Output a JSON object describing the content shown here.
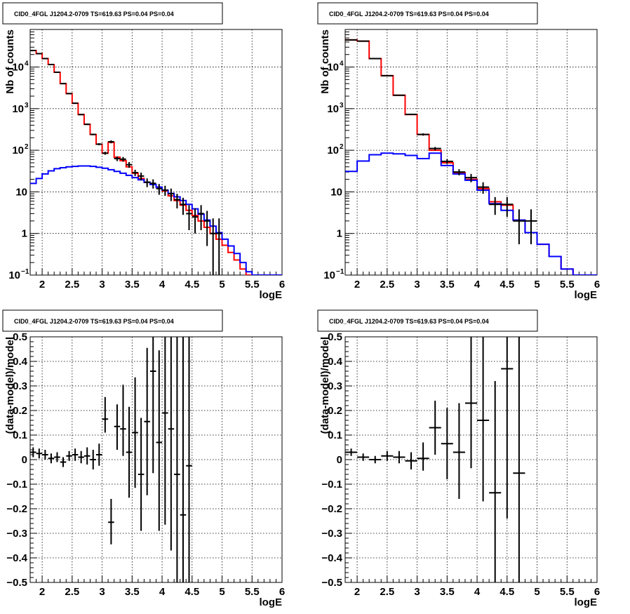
{
  "chart_data": [
    {
      "id": "tl",
      "type": "line",
      "title": "CID0_4FGL J1204.2-0709 TS=619.63 PS=0.04 PS=0.04",
      "xlabel": "logE",
      "ylabel": "Nb of counts",
      "xlim": [
        1.8,
        6.0
      ],
      "ylim": [
        0.1,
        80000
      ],
      "ylog": true,
      "grid": true,
      "xticks": [
        "2",
        "2.5",
        "3",
        "3.5",
        "4",
        "4.5",
        "5",
        "5.5",
        "6"
      ],
      "xtick_values": [
        2,
        2.5,
        3,
        3.5,
        4,
        4.5,
        5,
        5.5,
        6
      ],
      "yticks": [
        {
          "v": 0.1,
          "base": "10",
          "sup": "−1"
        },
        {
          "v": 1,
          "base": "1",
          "sup": ""
        },
        {
          "v": 10,
          "base": "10",
          "sup": ""
        },
        {
          "v": 100,
          "base": "10",
          "sup": "2"
        },
        {
          "v": 1000,
          "base": "10",
          "sup": "3"
        },
        {
          "v": 10000,
          "base": "10",
          "sup": "4"
        }
      ],
      "bin_edges": [
        1.8,
        1.9,
        2.0,
        2.1,
        2.2,
        2.3,
        2.4,
        2.5,
        2.6,
        2.7,
        2.8,
        2.9,
        3.0,
        3.1,
        3.2,
        3.3,
        3.4,
        3.5,
        3.6,
        3.7,
        3.8,
        3.9,
        4.0,
        4.1,
        4.2,
        4.3,
        4.4,
        4.5,
        4.6,
        4.7,
        4.8,
        4.9,
        5.0,
        5.1,
        5.2,
        5.3,
        5.4,
        5.5,
        5.6,
        5.7,
        5.8,
        5.9,
        6.0
      ],
      "series": [
        {
          "name": "",
          "color": "#ff0000",
          "kind": "hist",
          "values": [
            25000,
            21000,
            16000,
            11500,
            7500,
            4000,
            2300,
            1350,
            720,
            420,
            240,
            140,
            85,
            155,
            68,
            56,
            40,
            28,
            21,
            17,
            15,
            13,
            10.5,
            8,
            6.2,
            4.8,
            3.6,
            2.7,
            2.0,
            1.4,
            1.0,
            0.73,
            0.52,
            0.35,
            0.23,
            0.14,
            0.1,
            0.1,
            0.1,
            0.1,
            0.1,
            0.1
          ]
        },
        {
          "name": "",
          "color": "#0000ff",
          "kind": "hist",
          "values": [
            16,
            21,
            27,
            32,
            36,
            38,
            40,
            41,
            42,
            42,
            41,
            39,
            37,
            34,
            31,
            28,
            25,
            22,
            19.5,
            17,
            15,
            13,
            11,
            9.2,
            7.6,
            6.2,
            5.0,
            3.9,
            2.9,
            2.1,
            1.5,
            1.05,
            0.73,
            0.5,
            0.33,
            0.2,
            0.12,
            0.1,
            0.1,
            0.1,
            0.1,
            0.1
          ]
        },
        {
          "name": "",
          "color": "#000000",
          "kind": "points",
          "x": [
            1.85,
            1.95,
            2.05,
            2.15,
            2.25,
            2.35,
            2.45,
            2.55,
            2.65,
            2.75,
            2.85,
            2.95,
            3.05,
            3.15,
            3.25,
            3.35,
            3.45,
            3.55,
            3.65,
            3.75,
            3.85,
            3.95,
            4.05,
            4.15,
            4.25,
            4.35,
            4.45,
            4.55,
            4.65,
            4.75,
            4.85,
            4.95
          ],
          "y": [
            25000,
            21000,
            16000,
            11500,
            7500,
            4000,
            2300,
            1350,
            720,
            420,
            240,
            140,
            85,
            160,
            63,
            61,
            45,
            29,
            24,
            17,
            16,
            12,
            11,
            9,
            6.5,
            5,
            3,
            2.5,
            3,
            2,
            1,
            1
          ],
          "ylo": [
            24800,
            20800,
            15800,
            11300,
            7350,
            3900,
            2250,
            1320,
            700,
            405,
            230,
            132,
            78,
            147,
            55,
            53,
            38,
            24,
            19,
            13,
            12,
            8.5,
            8,
            6,
            4,
            2.8,
            1.2,
            1.0,
            1.2,
            0.5,
            0.05,
            0.05
          ],
          "yhi": [
            25200,
            21200,
            16200,
            11700,
            7650,
            4100,
            2350,
            1380,
            740,
            435,
            250,
            148,
            92,
            173,
            71,
            69,
            52,
            34,
            29,
            21,
            20,
            15.5,
            14,
            12,
            9,
            7.2,
            4.8,
            4,
            4.8,
            3.5,
            2.3,
            2.3
          ]
        }
      ]
    },
    {
      "id": "tr",
      "type": "line",
      "title": "CID0_4FGL J1204.2-0709 TS=619.63 PS=0.04 PS=0.04",
      "xlabel": "logE",
      "ylabel": "Nb of counts",
      "xlim": [
        1.8,
        6.0
      ],
      "ylim": [
        0.1,
        80000
      ],
      "ylog": true,
      "grid": true,
      "xticks": [
        "2",
        "2.5",
        "3",
        "3.5",
        "4",
        "4.5",
        "5",
        "5.5",
        "6"
      ],
      "xtick_values": [
        2,
        2.5,
        3,
        3.5,
        4,
        4.5,
        5,
        5.5,
        6
      ],
      "yticks": [
        {
          "v": 0.1,
          "base": "10",
          "sup": "−1"
        },
        {
          "v": 1,
          "base": "1",
          "sup": ""
        },
        {
          "v": 10,
          "base": "10",
          "sup": ""
        },
        {
          "v": 100,
          "base": "10",
          "sup": "2"
        },
        {
          "v": 1000,
          "base": "10",
          "sup": "3"
        },
        {
          "v": 10000,
          "base": "10",
          "sup": "4"
        }
      ],
      "bin_edges": [
        1.8,
        2.0,
        2.2,
        2.4,
        2.6,
        2.8,
        3.0,
        3.2,
        3.4,
        3.6,
        3.8,
        4.0,
        4.2,
        4.4,
        4.6,
        4.8,
        5.0,
        5.2,
        5.4,
        5.6,
        5.8,
        6.0
      ],
      "series": [
        {
          "name": "",
          "color": "#ff0000",
          "kind": "hist",
          "values": [
            45000,
            42000,
            16000,
            6200,
            2100,
            720,
            240,
            100,
            50,
            29,
            20,
            12,
            5.8,
            4.8,
            2.1,
            1.05,
            0.55,
            0.28,
            0.14,
            0.1,
            0.1
          ]
        },
        {
          "name": "",
          "color": "#0000ff",
          "kind": "hist",
          "values": [
            31,
            55,
            78,
            85,
            82,
            75,
            63,
            85,
            43,
            27,
            19,
            11,
            5.2,
            3.6,
            2.1,
            1.05,
            0.55,
            0.28,
            0.14,
            0.1,
            0.1
          ]
        },
        {
          "name": "",
          "color": "#000000",
          "kind": "points",
          "x": [
            1.9,
            2.1,
            2.3,
            2.5,
            2.7,
            2.9,
            3.1,
            3.3,
            3.5,
            3.7,
            3.9,
            4.1,
            4.3,
            4.5,
            4.7,
            4.9
          ],
          "y": [
            45000,
            42000,
            16000,
            6200,
            2100,
            730,
            240,
            110,
            54,
            30,
            22,
            13,
            5,
            5,
            2,
            2
          ],
          "ylo": [
            44600,
            41600,
            15800,
            6100,
            2050,
            700,
            225,
            100,
            47,
            25,
            17,
            9,
            2.8,
            2.5,
            0.55,
            0.55
          ],
          "yhi": [
            45400,
            42400,
            16200,
            6300,
            2150,
            760,
            255,
            120,
            61,
            35,
            27,
            17,
            7.5,
            7.5,
            3.8,
            3.8
          ]
        }
      ]
    },
    {
      "id": "bl",
      "type": "scatter",
      "title": "CID0_4FGL J1204.2-0709 TS=619.63 PS=0.04 PS=0.04",
      "xlabel": "logE",
      "ylabel": "(data-model)/model",
      "xlim": [
        1.8,
        6.0
      ],
      "ylim": [
        -0.5,
        0.5
      ],
      "ylog": false,
      "grid": true,
      "xticks": [
        "2",
        "2.5",
        "3",
        "3.5",
        "4",
        "4.5",
        "5",
        "5.5",
        "6"
      ],
      "xtick_values": [
        2,
        2.5,
        3,
        3.5,
        4,
        4.5,
        5,
        5.5,
        6
      ],
      "yticks": [
        {
          "v": -0.5,
          "base": "−0.5",
          "sup": ""
        },
        {
          "v": -0.4,
          "base": "−0.4",
          "sup": ""
        },
        {
          "v": -0.3,
          "base": "−0.3",
          "sup": ""
        },
        {
          "v": -0.2,
          "base": "−0.2",
          "sup": ""
        },
        {
          "v": -0.1,
          "base": "−0.1",
          "sup": ""
        },
        {
          "v": 0,
          "base": "0",
          "sup": ""
        },
        {
          "v": 0.1,
          "base": "0.1",
          "sup": ""
        },
        {
          "v": 0.2,
          "base": "0.2",
          "sup": ""
        },
        {
          "v": 0.3,
          "base": "0.3",
          "sup": ""
        },
        {
          "v": 0.4,
          "base": "0.4",
          "sup": ""
        },
        {
          "v": 0.5,
          "base": "0.5",
          "sup": ""
        }
      ],
      "series": [
        {
          "name": "",
          "color": "#000000",
          "kind": "points",
          "xerr": 0.05,
          "x": [
            1.85,
            1.95,
            2.05,
            2.15,
            2.25,
            2.35,
            2.45,
            2.55,
            2.65,
            2.75,
            2.85,
            2.95,
            3.05,
            3.15,
            3.25,
            3.35,
            3.45,
            3.55,
            3.65,
            3.75,
            3.85,
            3.95,
            4.05,
            4.15,
            4.25,
            4.35,
            4.45
          ],
          "y": [
            0.03,
            0.025,
            0.02,
            0.005,
            0.01,
            -0.01,
            0.015,
            0.02,
            0.01,
            0.015,
            0.0,
            0.02,
            0.165,
            -0.255,
            0.135,
            0.125,
            0.03,
            0.11,
            -0.06,
            0.155,
            0.36,
            0.07,
            0.19,
            0.125,
            -0.06,
            -0.225,
            -0.025
          ],
          "ylo": [
            0.01,
            0.005,
            0.0,
            -0.015,
            -0.01,
            -0.03,
            -0.005,
            -0.005,
            -0.015,
            -0.02,
            -0.04,
            -0.025,
            0.11,
            -0.345,
            0.04,
            0.015,
            -0.155,
            -0.115,
            -0.29,
            -0.145,
            -0.055,
            -0.29,
            -0.265,
            -0.37,
            -0.5,
            -0.5,
            -0.5
          ],
          "yhi": [
            0.05,
            0.045,
            0.04,
            0.025,
            0.03,
            0.01,
            0.035,
            0.045,
            0.035,
            0.05,
            0.04,
            0.065,
            0.255,
            -0.16,
            0.225,
            0.305,
            0.215,
            0.335,
            0.17,
            0.455,
            0.5,
            0.445,
            0.5,
            0.5,
            0.5,
            0.5,
            0.5
          ]
        }
      ]
    },
    {
      "id": "br",
      "type": "scatter",
      "title": "CID0_4FGL J1204.2-0709 TS=619.63 PS=0.04 PS=0.04",
      "xlabel": "logE",
      "ylabel": "(data-model)/model",
      "xlim": [
        1.8,
        6.0
      ],
      "ylim": [
        -0.5,
        0.5
      ],
      "ylog": false,
      "grid": true,
      "xticks": [
        "2",
        "2.5",
        "3",
        "3.5",
        "4",
        "4.5",
        "5",
        "5.5",
        "6"
      ],
      "xtick_values": [
        2,
        2.5,
        3,
        3.5,
        4,
        4.5,
        5,
        5.5,
        6
      ],
      "yticks": [
        {
          "v": -0.5,
          "base": "−0.5",
          "sup": ""
        },
        {
          "v": -0.4,
          "base": "−0.4",
          "sup": ""
        },
        {
          "v": -0.3,
          "base": "−0.3",
          "sup": ""
        },
        {
          "v": -0.2,
          "base": "−0.2",
          "sup": ""
        },
        {
          "v": -0.1,
          "base": "−0.1",
          "sup": ""
        },
        {
          "v": 0,
          "base": "0",
          "sup": ""
        },
        {
          "v": 0.1,
          "base": "0.1",
          "sup": ""
        },
        {
          "v": 0.2,
          "base": "0.2",
          "sup": ""
        },
        {
          "v": 0.3,
          "base": "0.3",
          "sup": ""
        },
        {
          "v": 0.4,
          "base": "0.4",
          "sup": ""
        },
        {
          "v": 0.5,
          "base": "0.5",
          "sup": ""
        }
      ],
      "series": [
        {
          "name": "",
          "color": "#000000",
          "kind": "points",
          "xerr": 0.1,
          "x": [
            1.9,
            2.1,
            2.3,
            2.5,
            2.7,
            2.9,
            3.1,
            3.3,
            3.5,
            3.7,
            3.9,
            4.1,
            4.3,
            4.5,
            4.7
          ],
          "y": [
            0.03,
            0.01,
            0.0,
            0.015,
            0.01,
            -0.005,
            0.005,
            0.13,
            0.065,
            0.03,
            0.23,
            0.16,
            -0.135,
            0.37,
            -0.055
          ],
          "ylo": [
            0.015,
            -0.005,
            -0.015,
            -0.005,
            -0.015,
            -0.04,
            -0.045,
            0.02,
            -0.08,
            -0.16,
            -0.035,
            -0.17,
            -0.5,
            -0.24,
            -0.5
          ],
          "yhi": [
            0.045,
            0.025,
            0.015,
            0.035,
            0.035,
            0.03,
            0.07,
            0.24,
            0.21,
            0.23,
            0.5,
            0.5,
            0.32,
            0.5,
            0.5
          ]
        }
      ]
    }
  ]
}
